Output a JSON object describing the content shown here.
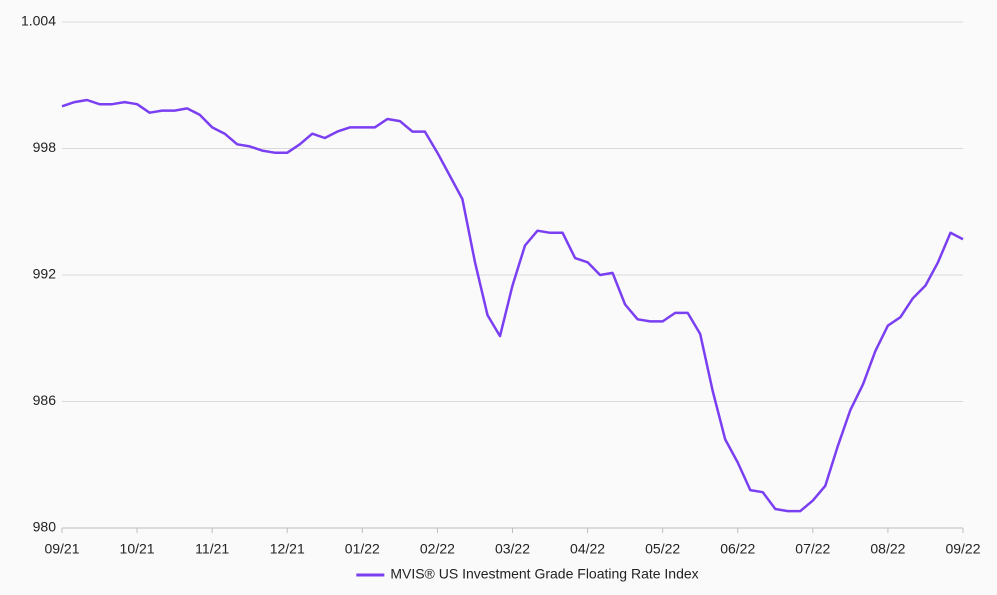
{
  "chart_data": {
    "type": "line",
    "categories": [
      "09/21",
      null,
      null,
      null,
      null,
      null,
      "10/21",
      null,
      null,
      null,
      null,
      null,
      "11/21",
      null,
      null,
      null,
      null,
      null,
      "12/21",
      null,
      null,
      null,
      null,
      null,
      "01/22",
      null,
      null,
      null,
      null,
      null,
      "02/22",
      null,
      null,
      null,
      null,
      null,
      "03/22",
      null,
      null,
      null,
      null,
      null,
      "04/22",
      null,
      null,
      null,
      null,
      null,
      "05/22",
      null,
      null,
      null,
      null,
      null,
      "06/22",
      null,
      null,
      null,
      null,
      null,
      "07/22",
      null,
      null,
      null,
      null,
      null,
      "08/22",
      null,
      null,
      null,
      null,
      null,
      "09/22"
    ],
    "series": [
      {
        "name": "MVIS® US Investment Grade Floating Rate Index",
        "color": "#7b3ff2",
        "values": [
          1000.0,
          1000.2,
          1000.3,
          1000.1,
          1000.1,
          1000.2,
          1000.1,
          999.7,
          999.8,
          999.8,
          999.9,
          999.6,
          999.0,
          998.7,
          998.2,
          998.1,
          997.9,
          997.8,
          997.8,
          998.2,
          998.7,
          998.5,
          998.8,
          999.0,
          999.0,
          999.0,
          999.4,
          999.3,
          998.8,
          998.8,
          997.8,
          996.7,
          995.6,
          992.6,
          990.1,
          989.1,
          991.5,
          993.4,
          994.1,
          994.0,
          994.0,
          992.8,
          992.6,
          992.0,
          992.1,
          990.6,
          989.9,
          989.8,
          989.8,
          990.2,
          990.2,
          989.2,
          986.5,
          984.2,
          983.1,
          981.8,
          981.7,
          980.9,
          980.8,
          980.8,
          981.3,
          982.0,
          983.9,
          985.6,
          986.8,
          988.4,
          989.6,
          990.0,
          990.9,
          991.5,
          992.6,
          994.0,
          993.7
        ]
      }
    ],
    "ylim": [
      980,
      1004
    ],
    "yticks": [
      980,
      986,
      992,
      998,
      {
        "value": 1004,
        "label": "1.004"
      }
    ],
    "grid": true,
    "legend": "bottom"
  }
}
